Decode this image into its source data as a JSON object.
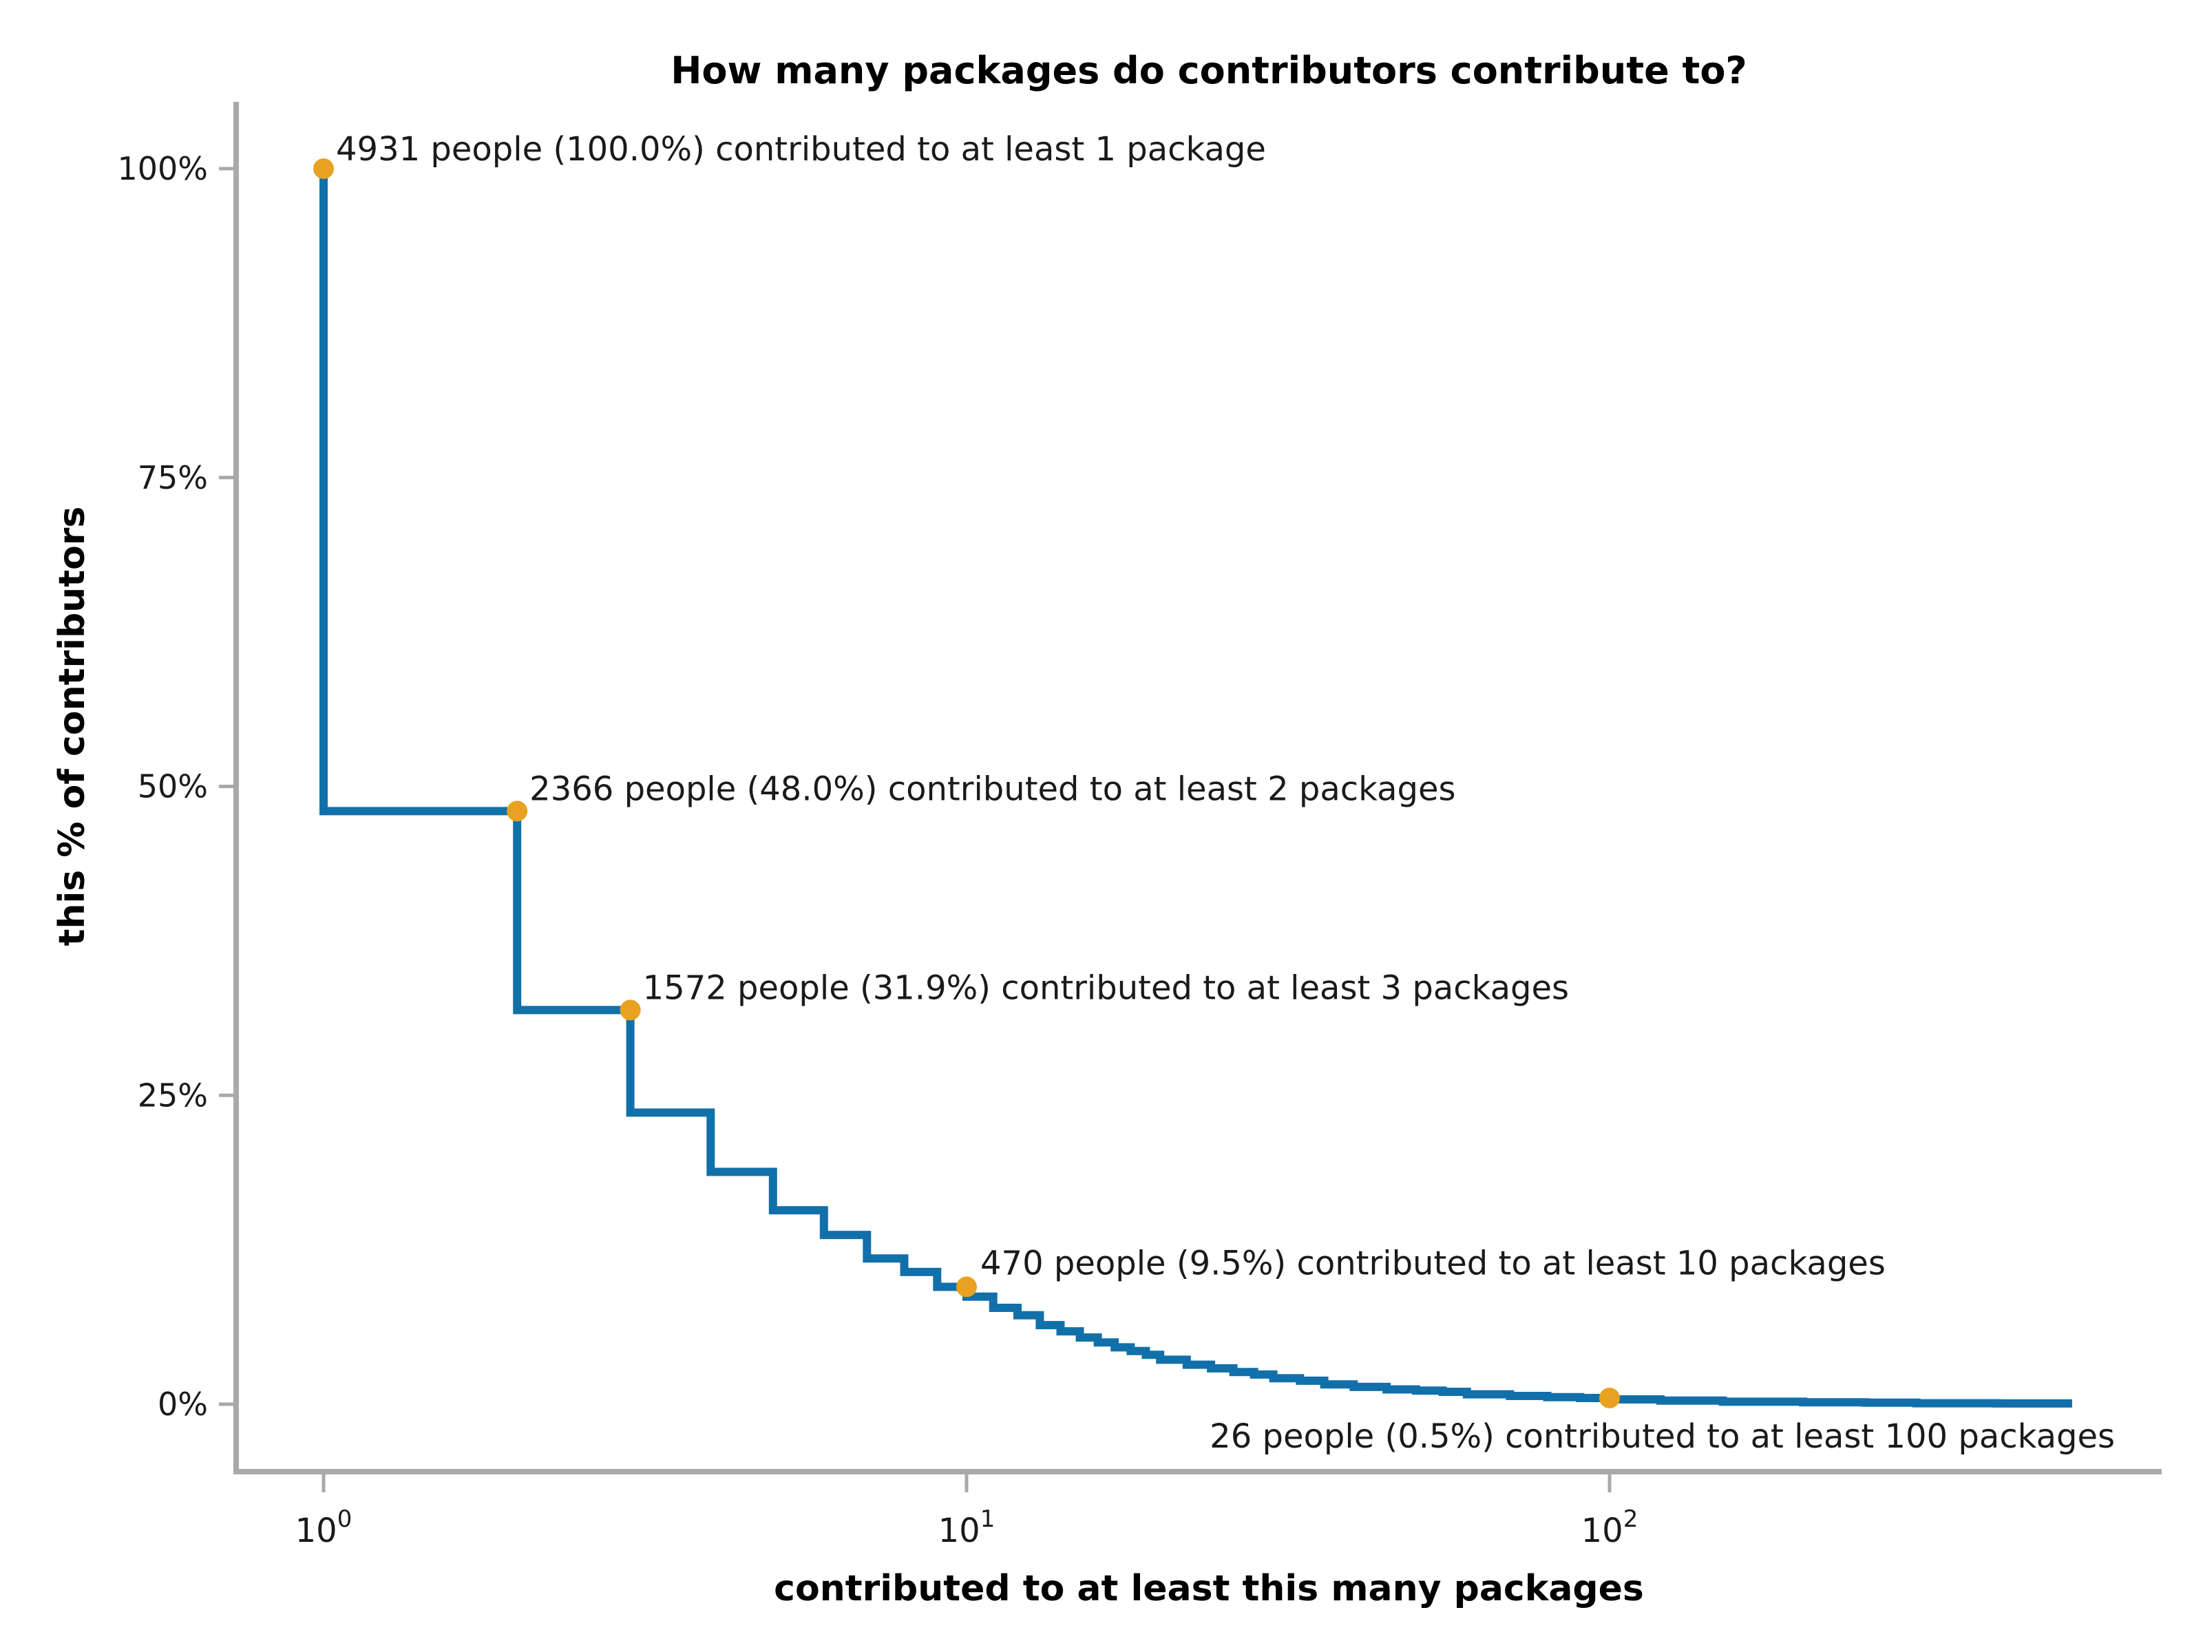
{
  "title": "How many packages do contributors contribute to?",
  "x_axis": {
    "label": "contributed to at least this many packages",
    "scale": "log10",
    "ticks": [
      {
        "label": "10⁰",
        "base": "10",
        "exp": "0",
        "value": 1
      },
      {
        "label": "10¹",
        "base": "10",
        "exp": "1",
        "value": 10
      },
      {
        "label": "10²",
        "base": "10",
        "exp": "2",
        "value": 100
      }
    ]
  },
  "y_axis": {
    "label": "this % of contributors",
    "ticks": [
      {
        "label": "100%",
        "value": 100
      },
      {
        "label": "75%",
        "value": 75
      },
      {
        "label": "50%",
        "value": 50
      },
      {
        "label": "25%",
        "value": 25
      },
      {
        "label": "0%",
        "value": 0
      }
    ]
  },
  "colors": {
    "line": "#1170aa",
    "points": "#e8a120",
    "axis": "#a9a9a9",
    "text": "#1a1a1a"
  },
  "chart_data": {
    "type": "line",
    "style": "step",
    "x_scale": "log10",
    "title": "How many packages do contributors contribute to?",
    "xlabel": "contributed to at least this many packages",
    "ylabel": "this % of contributors",
    "xlim": [
      1,
      524
    ],
    "ylim": [
      0,
      100
    ],
    "grid": false,
    "legend": false,
    "steps": [
      [
        1,
        100.0
      ],
      [
        2,
        48.0
      ],
      [
        3,
        31.9
      ],
      [
        4,
        23.6
      ],
      [
        5,
        18.8
      ],
      [
        6,
        15.7
      ],
      [
        7,
        13.7
      ],
      [
        8,
        11.8
      ],
      [
        9,
        10.7
      ],
      [
        10,
        9.5
      ],
      [
        11,
        8.7
      ],
      [
        12,
        7.8
      ],
      [
        13,
        7.2
      ],
      [
        14,
        6.4
      ],
      [
        15,
        5.9
      ],
      [
        16,
        5.4
      ],
      [
        17,
        5.0
      ],
      [
        18,
        4.6
      ],
      [
        19,
        4.3
      ],
      [
        20,
        4.0
      ],
      [
        22,
        3.6
      ],
      [
        24,
        3.2
      ],
      [
        26,
        2.9
      ],
      [
        28,
        2.6
      ],
      [
        30,
        2.4
      ],
      [
        33,
        2.1
      ],
      [
        36,
        1.9
      ],
      [
        40,
        1.6
      ],
      [
        45,
        1.4
      ],
      [
        50,
        1.2
      ],
      [
        55,
        1.1
      ],
      [
        60,
        1.0
      ],
      [
        70,
        0.8
      ],
      [
        80,
        0.67
      ],
      [
        90,
        0.57
      ],
      [
        100,
        0.5
      ],
      [
        120,
        0.39
      ],
      [
        150,
        0.29
      ],
      [
        200,
        0.2
      ],
      [
        250,
        0.15
      ],
      [
        300,
        0.12
      ],
      [
        400,
        0.08
      ],
      [
        524,
        0.06
      ]
    ],
    "annotated_points": [
      {
        "x": 1,
        "people": 4931,
        "percent": 100.0,
        "text": "4931 people (100.0%) contributed to at least 1 package"
      },
      {
        "x": 2,
        "people": 2366,
        "percent": 48.0,
        "text": "2366 people (48.0%) contributed to at least 2 packages"
      },
      {
        "x": 3,
        "people": 1572,
        "percent": 31.9,
        "text": "1572 people (31.9%) contributed to at least 3 packages"
      },
      {
        "x": 10,
        "people": 470,
        "percent": 9.5,
        "text": "470 people (9.5%) contributed to at least 10 packages"
      },
      {
        "x": 100,
        "people": 26,
        "percent": 0.5,
        "text": "26 people (0.5%) contributed to at least 100 packages"
      }
    ]
  }
}
